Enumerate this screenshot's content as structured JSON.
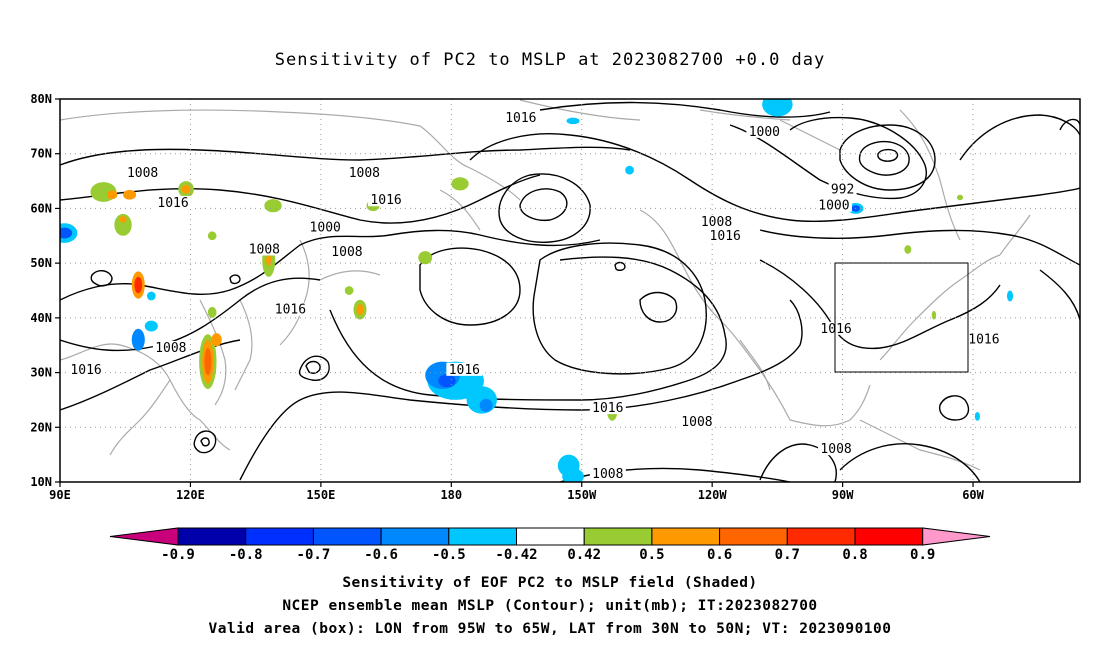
{
  "title": "Sensitivity of PC2 to MSLP at 2023082700 +0.0 day",
  "map": {
    "lat_ticks": [
      "80N",
      "70N",
      "60N",
      "50N",
      "40N",
      "30N",
      "20N",
      "10N"
    ],
    "lon_ticks": [
      "90E",
      "120E",
      "150E",
      "180",
      "150W",
      "120W",
      "90W",
      "60W"
    ],
    "contour_labels": [
      {
        "text": "1016",
        "lon": 196,
        "lat": 76.5
      },
      {
        "text": "1008",
        "lon": 109,
        "lat": 66.5
      },
      {
        "text": "1008",
        "lon": 160,
        "lat": 66.5
      },
      {
        "text": "1000",
        "lon": 252,
        "lat": 74
      },
      {
        "text": "1016",
        "lon": 116,
        "lat": 61
      },
      {
        "text": "1016",
        "lon": 165,
        "lat": 61.5
      },
      {
        "text": "1000",
        "lon": 151,
        "lat": 56.5
      },
      {
        "text": "992",
        "lon": 270,
        "lat": 63.5
      },
      {
        "text": "1000",
        "lon": 268,
        "lat": 60.5
      },
      {
        "text": "1008",
        "lon": 241,
        "lat": 57.5
      },
      {
        "text": "1016",
        "lon": 243,
        "lat": 55
      },
      {
        "text": "1008",
        "lon": 137,
        "lat": 52.5
      },
      {
        "text": "1008",
        "lon": 156,
        "lat": 52
      },
      {
        "text": "1016",
        "lon": 143,
        "lat": 41.5
      },
      {
        "text": "1016",
        "lon": 268.5,
        "lat": 38
      },
      {
        "text": "1016",
        "lon": 302.5,
        "lat": 36
      },
      {
        "text": "1008",
        "lon": 115.5,
        "lat": 34.5
      },
      {
        "text": "1016",
        "lon": 96,
        "lat": 30.5
      },
      {
        "text": "1016",
        "lon": 183,
        "lat": 30.5
      },
      {
        "text": "1016",
        "lon": 216,
        "lat": 23.5
      },
      {
        "text": "1008",
        "lon": 236.5,
        "lat": 21
      },
      {
        "text": "1008",
        "lon": 268.5,
        "lat": 16
      },
      {
        "text": "1008",
        "lon": 216,
        "lat": 11.5
      }
    ],
    "shaded_regions": [
      {
        "lon": 100,
        "lat": 63,
        "rx": 3,
        "ry": 1.8,
        "level": 0.5
      },
      {
        "lon": 102,
        "lat": 62.5,
        "rx": 1.2,
        "ry": 0.8,
        "level": 0.6
      },
      {
        "lon": 106,
        "lat": 62.5,
        "rx": 1.5,
        "ry": 0.9,
        "level": 0.6
      },
      {
        "lon": 119,
        "lat": 63.5,
        "rx": 1.8,
        "ry": 1.5,
        "level": 0.5
      },
      {
        "lon": 119,
        "lat": 63.5,
        "rx": 1,
        "ry": 0.8,
        "level": 0.6
      },
      {
        "lon": 139,
        "lat": 60.5,
        "rx": 2,
        "ry": 1.2,
        "level": 0.5
      },
      {
        "lon": 182,
        "lat": 64.5,
        "rx": 2,
        "ry": 1.2,
        "level": 0.5
      },
      {
        "lon": 162,
        "lat": 60.5,
        "rx": 1.5,
        "ry": 1,
        "level": 0.5
      },
      {
        "lon": 104.5,
        "lat": 57,
        "rx": 2,
        "ry": 2,
        "level": 0.5
      },
      {
        "lon": 104.5,
        "lat": 58,
        "rx": 0.8,
        "ry": 0.6,
        "level": 0.6
      },
      {
        "lon": 91,
        "lat": 55.5,
        "rx": 3,
        "ry": 1.8,
        "level": -0.5
      },
      {
        "lon": 91,
        "lat": 55.5,
        "rx": 1.8,
        "ry": 1,
        "level": -0.7
      },
      {
        "lon": 125,
        "lat": 55,
        "rx": 1,
        "ry": 0.8,
        "level": 0.5
      },
      {
        "lon": 138,
        "lat": 50.5,
        "rx": 1.5,
        "ry": 3,
        "level": 0.5
      },
      {
        "lon": 138,
        "lat": 50.5,
        "rx": 0.6,
        "ry": 1,
        "level": 0.6
      },
      {
        "lon": 174,
        "lat": 51,
        "rx": 1.6,
        "ry": 1.2,
        "level": 0.5
      },
      {
        "lon": 156.5,
        "lat": 45,
        "rx": 1,
        "ry": 0.8,
        "level": 0.5
      },
      {
        "lon": 108,
        "lat": 46,
        "rx": 1.5,
        "ry": 2.5,
        "level": 0.6
      },
      {
        "lon": 108,
        "lat": 46,
        "rx": 0.9,
        "ry": 1.5,
        "level": 0.8
      },
      {
        "lon": 111,
        "lat": 44,
        "rx": 1,
        "ry": 0.8,
        "level": -0.5
      },
      {
        "lon": 111,
        "lat": 38.5,
        "rx": 1.5,
        "ry": 1,
        "level": -0.5
      },
      {
        "lon": 108,
        "lat": 36,
        "rx": 1.5,
        "ry": 2,
        "level": -0.6
      },
      {
        "lon": 124,
        "lat": 32,
        "rx": 2,
        "ry": 5,
        "level": 0.5
      },
      {
        "lon": 124,
        "lat": 32,
        "rx": 1.3,
        "ry": 4,
        "level": 0.6
      },
      {
        "lon": 124,
        "lat": 32,
        "rx": 0.8,
        "ry": 2.5,
        "level": 0.7
      },
      {
        "lon": 126,
        "lat": 36,
        "rx": 1.2,
        "ry": 1.2,
        "level": 0.6
      },
      {
        "lon": 125,
        "lat": 41,
        "rx": 1,
        "ry": 1,
        "level": 0.5
      },
      {
        "lon": 159,
        "lat": 41.5,
        "rx": 1.5,
        "ry": 1.8,
        "level": 0.5
      },
      {
        "lon": 159,
        "lat": 41.5,
        "rx": 0.8,
        "ry": 1,
        "level": 0.6
      },
      {
        "lon": 181,
        "lat": 28.5,
        "rx": 6.5,
        "ry": 3.5,
        "level": -0.5
      },
      {
        "lon": 178,
        "lat": 29.5,
        "rx": 4,
        "ry": 2.5,
        "level": -0.6
      },
      {
        "lon": 179,
        "lat": 28.5,
        "rx": 2,
        "ry": 1.2,
        "level": -0.7
      },
      {
        "lon": 187,
        "lat": 25,
        "rx": 3.5,
        "ry": 2.5,
        "level": -0.5
      },
      {
        "lon": 188,
        "lat": 24,
        "rx": 1.5,
        "ry": 1.2,
        "level": -0.6
      },
      {
        "lon": 207,
        "lat": 13,
        "rx": 2.5,
        "ry": 2,
        "level": -0.5
      },
      {
        "lon": 208,
        "lat": 11,
        "rx": 2.5,
        "ry": 1.5,
        "level": -0.5
      },
      {
        "lon": 217,
        "lat": 23,
        "rx": 1.2,
        "ry": 1.8,
        "level": 0.5
      },
      {
        "lon": 217,
        "lat": 23.5,
        "rx": 0.6,
        "ry": 0.8,
        "level": 0.6
      },
      {
        "lon": 255,
        "lat": 79,
        "rx": 3.5,
        "ry": 2.2,
        "level": -0.5
      },
      {
        "lon": 273,
        "lat": 60,
        "rx": 1.8,
        "ry": 1,
        "level": -0.5
      },
      {
        "lon": 273,
        "lat": 60,
        "rx": 1,
        "ry": 0.6,
        "level": -0.7
      },
      {
        "lon": 208,
        "lat": 76,
        "rx": 1.5,
        "ry": 0.6,
        "level": -0.5
      },
      {
        "lon": 221,
        "lat": 67,
        "rx": 1,
        "ry": 0.8,
        "level": -0.5
      },
      {
        "lon": 291,
        "lat": 40.5,
        "rx": 0.5,
        "ry": 0.8,
        "level": 0.5
      },
      {
        "lon": 297,
        "lat": 62,
        "rx": 0.7,
        "ry": 0.5,
        "level": 0.5
      },
      {
        "lon": 308.5,
        "lat": 44,
        "rx": 0.7,
        "ry": 1,
        "level": -0.5
      },
      {
        "lon": 301,
        "lat": 22,
        "rx": 0.6,
        "ry": 0.8,
        "level": -0.5
      },
      {
        "lon": 285,
        "lat": 52.5,
        "rx": 0.8,
        "ry": 0.8,
        "level": 0.5
      }
    ]
  },
  "colorbar": {
    "labels": [
      "-0.9",
      "-0.8",
      "-0.7",
      "-0.6",
      "-0.5",
      "-0.42",
      "0.42",
      "0.5",
      "0.6",
      "0.7",
      "0.8",
      "0.9"
    ],
    "colors": [
      "#c8007c",
      "#0000aa",
      "#0030ff",
      "#0055ff",
      "#0088ff",
      "#00c8ff",
      "#ffffff",
      "#99cc33",
      "#ff9900",
      "#ff6600",
      "#ff2a00",
      "#ff0000",
      "#ff99cc"
    ]
  },
  "caption": {
    "line1": "Sensitivity of EOF PC2 to MSLP field (Shaded)",
    "line2": "NCEP ensemble mean MSLP (Contour); unit(mb); IT:2023082700",
    "line3": "Valid area (box): LON from 95W to 65W, LAT from 30N to 50N; VT: 2023090100"
  }
}
